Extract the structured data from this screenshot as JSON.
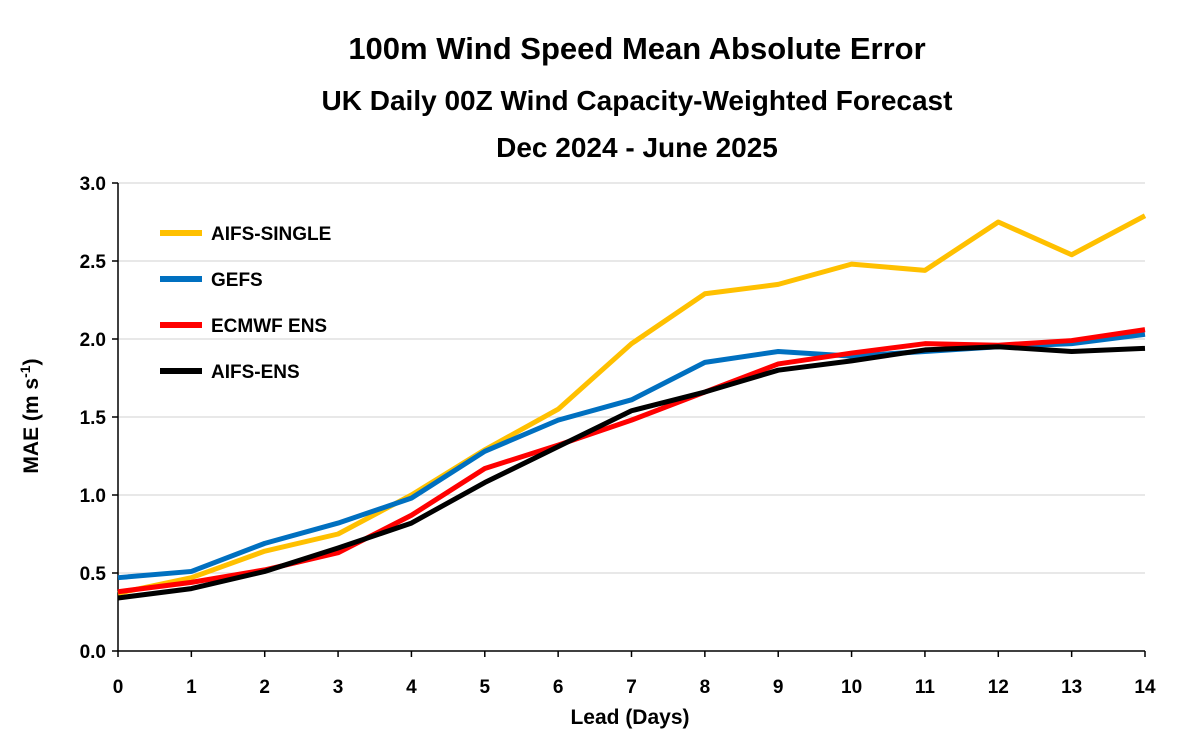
{
  "chart_data": {
    "type": "line",
    "title": "100m Wind Speed Mean Absolute Error",
    "subtitle_lines": [
      "UK Daily 00Z Wind Capacity-Weighted Forecast",
      "Dec 2024 - June 2025"
    ],
    "xlabel": "Lead (Days)",
    "ylabel": "MAE (m s",
    "ylabel_superscript": "-1",
    "ylabel_suffix": ")",
    "xlim": [
      0,
      14
    ],
    "ylim": [
      0,
      3
    ],
    "x": [
      0,
      1,
      2,
      3,
      4,
      5,
      6,
      7,
      8,
      9,
      10,
      11,
      12,
      13,
      14
    ],
    "x_ticks": [
      "0",
      "1",
      "2",
      "3",
      "4",
      "5",
      "6",
      "7",
      "8",
      "9",
      "10",
      "11",
      "12",
      "13",
      "14"
    ],
    "y_ticks": [
      {
        "value": 0,
        "label": "0.0"
      },
      {
        "value": 0.5,
        "label": "0.5"
      },
      {
        "value": 1.0,
        "label": "1.0"
      },
      {
        "value": 1.5,
        "label": "1.5"
      },
      {
        "value": 2.0,
        "label": "2.0"
      },
      {
        "value": 2.5,
        "label": "2.5"
      },
      {
        "value": 3.0,
        "label": "3.0"
      }
    ],
    "grid": true,
    "legend_position": "top-left",
    "series": [
      {
        "name": "AIFS-SINGLE",
        "color": "#FFC000",
        "values": [
          0.37,
          0.47,
          0.64,
          0.75,
          1.0,
          1.29,
          1.55,
          1.97,
          2.29,
          2.35,
          2.48,
          2.44,
          2.75,
          2.54,
          2.79
        ]
      },
      {
        "name": "GEFS",
        "color": "#0070C0",
        "values": [
          0.47,
          0.51,
          0.69,
          0.82,
          0.98,
          1.28,
          1.48,
          1.61,
          1.85,
          1.92,
          1.89,
          1.92,
          1.95,
          1.97,
          2.03
        ]
      },
      {
        "name": "ECMWF ENS",
        "color": "#FF0000",
        "values": [
          0.38,
          0.44,
          0.52,
          0.63,
          0.87,
          1.17,
          1.32,
          1.48,
          1.66,
          1.84,
          1.91,
          1.97,
          1.96,
          1.99,
          2.06
        ]
      },
      {
        "name": "AIFS-ENS",
        "color": "#000000",
        "values": [
          0.34,
          0.4,
          0.51,
          0.66,
          0.82,
          1.08,
          1.31,
          1.54,
          1.66,
          1.8,
          1.86,
          1.93,
          1.95,
          1.92,
          1.94
        ]
      }
    ]
  }
}
